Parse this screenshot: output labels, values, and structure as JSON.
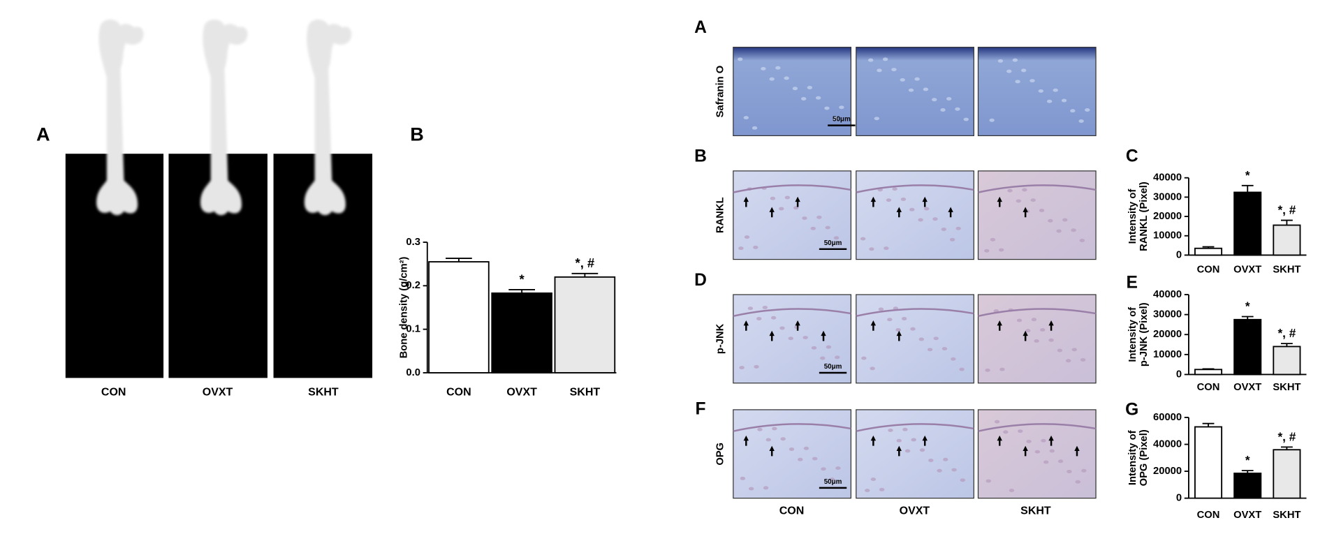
{
  "figure": {
    "left_panel": "A",
    "xray_labels": [
      "CON",
      "OVXT",
      "SKHT"
    ],
    "histology": {
      "panel": "A",
      "row_letters": [
        "B",
        "D",
        "F"
      ],
      "row_labels": [
        "Safranin O",
        "RANKL",
        "p-JNK",
        "OPG"
      ],
      "col_labels": [
        "CON",
        "OVXT",
        "SKHT"
      ],
      "scale_bar": "50μm"
    }
  },
  "chart_data": [
    {
      "type": "bar",
      "title": "B",
      "ylabel": [
        "Bone density (g/cm²)"
      ],
      "categories": [
        "CON",
        "OVXT",
        "SKHT"
      ],
      "values": [
        0.255,
        0.183,
        0.22
      ],
      "errors": [
        0.008,
        0.008,
        0.008
      ],
      "colors": [
        "#ffffff",
        "#000000",
        "#e8e8e8"
      ],
      "annotations": [
        null,
        "*",
        "*, #"
      ],
      "ylim": [
        0,
        0.3
      ],
      "yticks": [
        {
          "value": 0,
          "label": "0.0"
        },
        0.1,
        0.2,
        0.3
      ]
    },
    {
      "type": "bar",
      "title": "C",
      "ylabel": [
        "Intensity of",
        "RANKL (Pixel)"
      ],
      "categories": [
        "CON",
        "OVXT",
        "SKHT"
      ],
      "values": [
        3500,
        32500,
        15500
      ],
      "errors": [
        800,
        3500,
        2500
      ],
      "colors": [
        "#ffffff",
        "#000000",
        "#e8e8e8"
      ],
      "annotations": [
        null,
        "*",
        "*, #"
      ],
      "ylim": [
        0,
        40000
      ],
      "yticks": [
        0,
        10000,
        20000,
        30000,
        40000
      ]
    },
    {
      "type": "bar",
      "title": "E",
      "ylabel": [
        "Intensity of",
        "p-JNK (Pixel)"
      ],
      "categories": [
        "CON",
        "OVXT",
        "SKHT"
      ],
      "values": [
        2500,
        27500,
        14000
      ],
      "errors": [
        300,
        1500,
        1500
      ],
      "colors": [
        "#ffffff",
        "#000000",
        "#e8e8e8"
      ],
      "annotations": [
        null,
        "*",
        "*, #"
      ],
      "ylim": [
        0,
        40000
      ],
      "yticks": [
        0,
        10000,
        20000,
        30000,
        40000
      ]
    },
    {
      "type": "bar",
      "title": "G",
      "ylabel": [
        "Intensity of",
        "OPG (Pixel)"
      ],
      "categories": [
        "CON",
        "OVXT",
        "SKHT"
      ],
      "values": [
        53000,
        18500,
        36000
      ],
      "errors": [
        2500,
        2000,
        2000
      ],
      "colors": [
        "#ffffff",
        "#000000",
        "#e8e8e8"
      ],
      "annotations": [
        null,
        "*",
        "*, #"
      ],
      "ylim": [
        0,
        60000
      ],
      "yticks": [
        0,
        20000,
        40000,
        60000
      ]
    }
  ]
}
